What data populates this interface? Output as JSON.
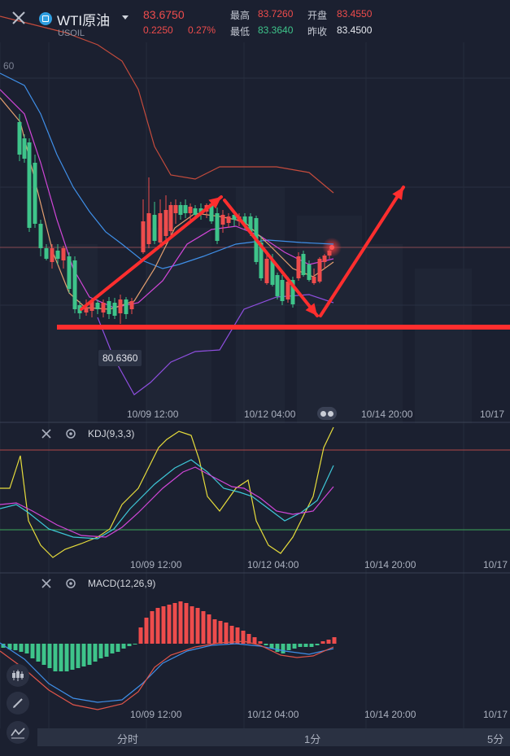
{
  "header": {
    "title": "WTI原油",
    "symbol": "USOIL",
    "price": "83.6750",
    "change": "0.2250",
    "change_pct": "0.27%",
    "high_label": "最高",
    "high_value": "83.7260",
    "open_label": "开盘",
    "open_value": "83.4550",
    "low_label": "最低",
    "low_value": "83.3640",
    "prev_close_label": "昨收",
    "prev_close_value": "83.4500"
  },
  "main_chart": {
    "price_tick_partial": "60",
    "low_marker": "80.6360",
    "time_labels": [
      "10/09 12:00",
      "10/12 04:00",
      "10/14 20:00",
      "10/17"
    ]
  },
  "kdj": {
    "name": "KDJ(9,3,3)",
    "time_labels": [
      "10/09 12:00",
      "10/12 04:00",
      "10/14 20:00",
      "10/17"
    ]
  },
  "macd": {
    "name": "MACD(12,26,9)",
    "time_labels": [
      "10/09 12:00",
      "10/12 04:00",
      "10/14 20:00",
      "10/17"
    ]
  },
  "timeframes": {
    "left": "分时",
    "middle": "1分",
    "right": "5分"
  },
  "colors": {
    "up": "#ee4c4c",
    "down": "#3ec48a",
    "background": "#1b2030",
    "annotation": "#ff2e2e"
  }
}
